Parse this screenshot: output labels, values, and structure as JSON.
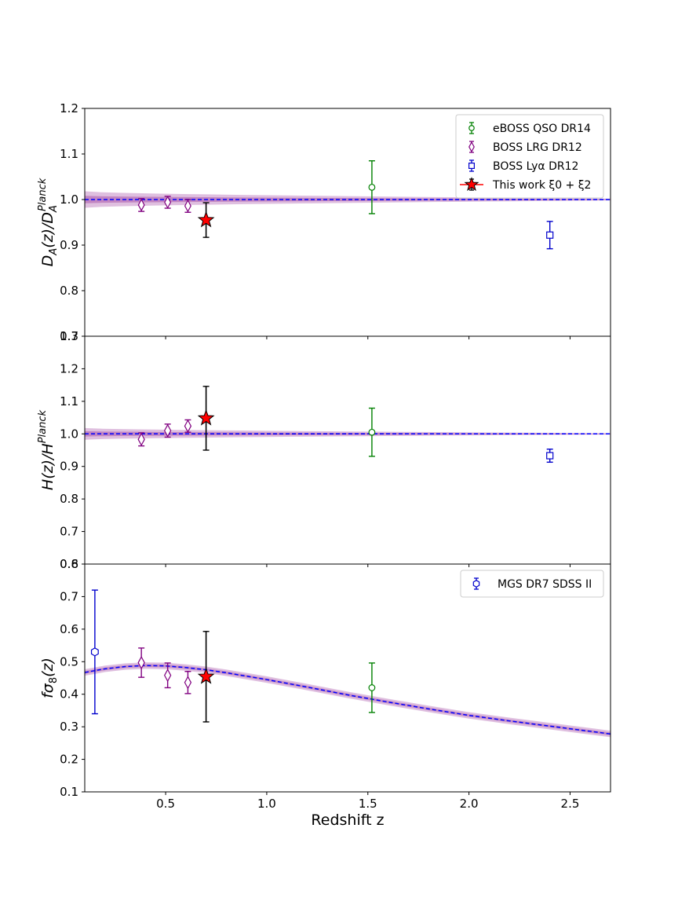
{
  "chart_data": {
    "type": "scatter",
    "xlabel": "Redshift z",
    "xlim": [
      0.1,
      2.7
    ],
    "xticks": [
      0.5,
      1.0,
      1.5,
      2.0,
      2.5
    ],
    "xtick_labels": [
      "0.5",
      "1.0",
      "1.5",
      "2.0",
      "2.5"
    ],
    "colors": {
      "eboss": "#008000",
      "lrg": "#800080",
      "lya": "#0000cc",
      "thiswork": "#ff0000",
      "band": "#800080",
      "model": "#0000ff",
      "mgs": "#0000cc"
    },
    "panels": [
      {
        "id": "da",
        "ylabel": "D_A(z)/D_A^Planck",
        "ylim": [
          0.7,
          1.2
        ],
        "yticks": [
          0.7,
          0.8,
          0.9,
          1.0,
          1.1,
          1.2
        ],
        "ytick_labels": [
          "0.7",
          "0.8",
          "0.9",
          "1.0",
          "1.1",
          "1.2"
        ],
        "legend": [
          "eBOSS QSO DR14",
          "BOSS LRG DR12",
          "BOSS Lyα DR12",
          "This work ξ0 + ξ2"
        ],
        "series": [
          {
            "name": "eBOSS QSO DR14",
            "key": "eboss",
            "marker": "circle",
            "points": [
              {
                "x": 1.52,
                "y": 1.027,
                "err": 0.058
              }
            ]
          },
          {
            "name": "BOSS LRG DR12",
            "key": "lrg",
            "marker": "diamond",
            "points": [
              {
                "x": 0.38,
                "y": 0.988,
                "err": 0.014
              },
              {
                "x": 0.51,
                "y": 0.994,
                "err": 0.013
              },
              {
                "x": 0.61,
                "y": 0.986,
                "err": 0.014
              }
            ]
          },
          {
            "name": "BOSS Lyα DR12",
            "key": "lya",
            "marker": "square",
            "points": [
              {
                "x": 2.4,
                "y": 0.922,
                "err": 0.03
              }
            ]
          },
          {
            "name": "This work ξ0 + ξ2",
            "key": "thiswork",
            "marker": "star",
            "points": [
              {
                "x": 0.7,
                "y": 0.955,
                "err": 0.038
              }
            ]
          }
        ]
      },
      {
        "id": "h",
        "ylabel": "H(z)/H^Planck",
        "ylim": [
          0.6,
          1.3
        ],
        "yticks": [
          0.6,
          0.7,
          0.8,
          0.9,
          1.0,
          1.1,
          1.2,
          1.3
        ],
        "ytick_labels": [
          "0.6",
          "0.7",
          "0.8",
          "0.9",
          "1.0",
          "1.1",
          "1.2",
          "1.3"
        ],
        "series": [
          {
            "name": "eBOSS QSO DR14",
            "key": "eboss",
            "marker": "circle",
            "points": [
              {
                "x": 1.52,
                "y": 1.005,
                "err": 0.074
              }
            ]
          },
          {
            "name": "BOSS LRG DR12",
            "key": "lrg",
            "marker": "diamond",
            "points": [
              {
                "x": 0.38,
                "y": 0.983,
                "err": 0.02
              },
              {
                "x": 0.51,
                "y": 1.01,
                "err": 0.02
              },
              {
                "x": 0.61,
                "y": 1.024,
                "err": 0.019
              }
            ]
          },
          {
            "name": "BOSS Lyα DR12",
            "key": "lya",
            "marker": "square",
            "points": [
              {
                "x": 2.4,
                "y": 0.933,
                "err": 0.02
              }
            ]
          },
          {
            "name": "This work ξ0 + ξ2",
            "key": "thiswork",
            "marker": "star",
            "points": [
              {
                "x": 0.7,
                "y": 1.048,
                "err": 0.098
              }
            ]
          }
        ]
      },
      {
        "id": "fs8",
        "ylabel": "fσ8(z)",
        "ylim": [
          0.1,
          0.8
        ],
        "yticks": [
          0.1,
          0.2,
          0.3,
          0.4,
          0.5,
          0.6,
          0.7,
          0.8
        ],
        "ytick_labels": [
          "0.1",
          "0.2",
          "0.3",
          "0.4",
          "0.5",
          "0.6",
          "0.7",
          "0.8"
        ],
        "legend": [
          "MGS DR7 SDSS II"
        ],
        "series": [
          {
            "name": "MGS DR7 SDSS II",
            "key": "mgs",
            "marker": "hexagon",
            "points": [
              {
                "x": 0.15,
                "y": 0.53,
                "err": 0.19
              }
            ]
          },
          {
            "name": "BOSS LRG DR12",
            "key": "lrg",
            "marker": "diamond",
            "points": [
              {
                "x": 0.38,
                "y": 0.497,
                "err": 0.045
              },
              {
                "x": 0.51,
                "y": 0.458,
                "err": 0.038
              },
              {
                "x": 0.61,
                "y": 0.436,
                "err": 0.034
              }
            ]
          },
          {
            "name": "eBOSS QSO DR14",
            "key": "eboss",
            "marker": "circle",
            "points": [
              {
                "x": 1.52,
                "y": 0.42,
                "err": 0.076
              }
            ]
          },
          {
            "name": "This work ξ0 + ξ2",
            "key": "thiswork",
            "marker": "star",
            "points": [
              {
                "x": 0.7,
                "y": 0.454,
                "err": 0.139
              }
            ]
          }
        ],
        "model": {
          "x": [
            0.1,
            0.2,
            0.3,
            0.4,
            0.5,
            0.6,
            0.7,
            0.8,
            1.0,
            1.2,
            1.4,
            1.6,
            1.8,
            2.0,
            2.2,
            2.4,
            2.6,
            2.7
          ],
          "y": [
            0.467,
            0.478,
            0.485,
            0.488,
            0.487,
            0.482,
            0.475,
            0.466,
            0.445,
            0.422,
            0.398,
            0.376,
            0.355,
            0.335,
            0.318,
            0.302,
            0.286,
            0.278
          ],
          "band_halfwidth": 0.01
        }
      }
    ]
  }
}
